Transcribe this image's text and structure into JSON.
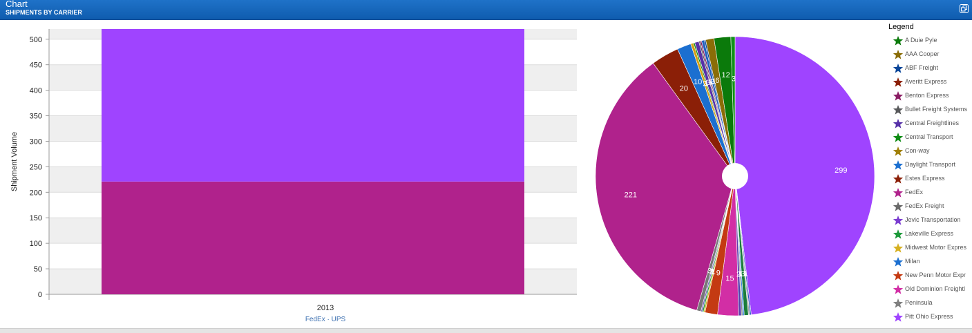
{
  "window": {
    "title": "Chart",
    "subtitle": "SHIPMENTS BY CARRIER",
    "restore_icon": "restore-window-icon"
  },
  "colors": {
    "titlebar": "#1565c0",
    "fedex": "#b0228c",
    "ups": "#9f44ff",
    "band": "#efefef"
  },
  "chart_data": [
    {
      "type": "bar",
      "stacked": true,
      "categories": [
        "2013"
      ],
      "series": [
        {
          "name": "FedEx",
          "values": [
            221
          ],
          "color": "#b0228c"
        },
        {
          "name": "UPS",
          "values": [
            299
          ],
          "color": "#9f44ff"
        }
      ],
      "ylabel": "Shipment Volume",
      "xlabel": "",
      "ylim": [
        0,
        520
      ],
      "yticks": [
        0,
        50,
        100,
        150,
        200,
        250,
        300,
        350,
        400,
        450,
        500
      ],
      "grid": "alternating horizontal bands",
      "category_legend": [
        "FedEx",
        "UPS"
      ],
      "category_legend_separator": "·"
    },
    {
      "type": "pie",
      "donut_hole": true,
      "legend_title": "Legend",
      "legend_placement": "right",
      "slices": [
        {
          "label": "299",
          "value": 299,
          "color": "#9f44ff"
        },
        {
          "label": "1",
          "value": 1,
          "color": "#2a56c4"
        },
        {
          "label": "1",
          "value": 1,
          "color": "#a9a9a9"
        },
        {
          "label": "3",
          "value": 3,
          "color": "#1a7d3a"
        },
        {
          "label": "1",
          "value": 1,
          "color": "#2c7de0"
        },
        {
          "label": "1",
          "value": 1,
          "color": "#8e8e8e"
        },
        {
          "label": "2",
          "value": 2,
          "color": "#5a3fb0"
        },
        {
          "label": "15",
          "value": 15,
          "color": "#d22ea5"
        },
        {
          "label": "9",
          "value": 9,
          "color": "#c43a12"
        },
        {
          "label": "1",
          "value": 1,
          "color": "#d6b020"
        },
        {
          "label": "1",
          "value": 1,
          "color": "#1d9a3a"
        },
        {
          "label": "1",
          "value": 1,
          "color": "#7a5cc2"
        },
        {
          "label": "3",
          "value": 3,
          "color": "#777777"
        },
        {
          "label": "221",
          "value": 221,
          "color": "#b0228c"
        },
        {
          "label": "20",
          "value": 20,
          "color": "#8b1f07"
        },
        {
          "label": "10",
          "value": 10,
          "color": "#1b6fd0"
        },
        {
          "label": "2",
          "value": 2,
          "color": "#d4a012"
        },
        {
          "label": "1",
          "value": 1,
          "color": "#0e8c14"
        },
        {
          "label": "3",
          "value": 3,
          "color": "#5631a8"
        },
        {
          "label": "1",
          "value": 1,
          "color": "#57585a"
        },
        {
          "label": "1",
          "value": 1,
          "color": "#8a1c63"
        },
        {
          "label": "2",
          "value": 2,
          "color": "#2060c0"
        },
        {
          "label": "1",
          "value": 1,
          "color": "#0a4598"
        },
        {
          "label": "6",
          "value": 6,
          "color": "#8a6d07"
        },
        {
          "label": "12",
          "value": 12,
          "color": "#0b7a0b"
        },
        {
          "label": "3",
          "value": 3,
          "color": "#12901a"
        }
      ],
      "legend": [
        {
          "name": "A Duie Pyle",
          "color": "#0b7a0b"
        },
        {
          "name": "AAA Cooper",
          "color": "#8a6d07"
        },
        {
          "name": "ABF Freight",
          "color": "#0a4598"
        },
        {
          "name": "Averitt Express",
          "color": "#8b1f07"
        },
        {
          "name": "Benton Express",
          "color": "#8a1c63"
        },
        {
          "name": "Bullet Freight Systems",
          "color": "#57585a"
        },
        {
          "name": "Central Freightlines",
          "color": "#5631a8"
        },
        {
          "name": "Central Transport",
          "color": "#0e8c14"
        },
        {
          "name": "Con-way",
          "color": "#a08008"
        },
        {
          "name": "Daylight Transport",
          "color": "#1b6fd0"
        },
        {
          "name": "Estes Express",
          "color": "#8b1f07"
        },
        {
          "name": "FedEx",
          "color": "#b0228c"
        },
        {
          "name": "FedEx Freight",
          "color": "#6a6a6a"
        },
        {
          "name": "Jevic Transportation",
          "color": "#7a3cd0"
        },
        {
          "name": "Lakeville Express",
          "color": "#1d9a3a"
        },
        {
          "name": "Midwest Motor Expres",
          "color": "#d6b020"
        },
        {
          "name": "Milan",
          "color": "#1b6fd0"
        },
        {
          "name": "New Penn Motor Expr",
          "color": "#c43a12"
        },
        {
          "name": "Old Dominion Freightl",
          "color": "#d22ea5"
        },
        {
          "name": "Peninsula",
          "color": "#808080"
        },
        {
          "name": "Pitt Ohio Express",
          "color": "#9f44ff"
        }
      ]
    }
  ]
}
